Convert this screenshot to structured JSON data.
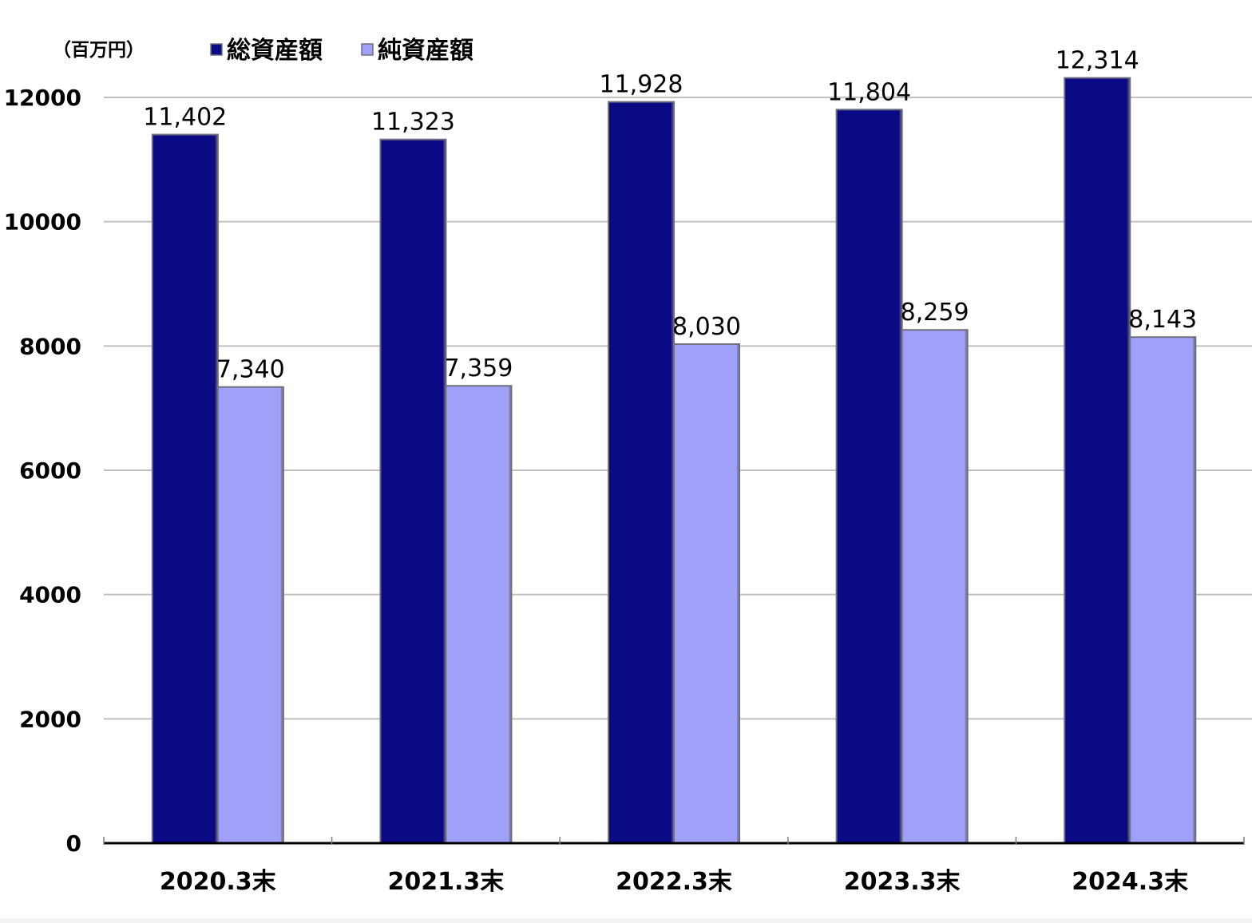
{
  "colors": {
    "total_assets": "#0a0a84",
    "net_assets": "#a0a0f8",
    "gridline": "#c0c0c0",
    "axis": "#000000",
    "bar_edge": "#707080",
    "text": "#000000"
  },
  "chart_data": {
    "type": "bar",
    "unit_label": "（百万円）",
    "categories": [
      "2020.3末",
      "2021.3末",
      "2022.3末",
      "2023.3末",
      "2024.3末"
    ],
    "series": [
      {
        "name": "総資産額",
        "color_key": "total_assets",
        "values": [
          11402,
          11323,
          11928,
          11804,
          12314
        ],
        "labels": [
          "11,402",
          "11,323",
          "11,928",
          "11,804",
          "12,314"
        ]
      },
      {
        "name": "純資産額",
        "color_key": "net_assets",
        "values": [
          7340,
          7359,
          8030,
          8259,
          8143
        ],
        "labels": [
          "7,340",
          "7,359",
          "8,030",
          "8,259",
          "8,143"
        ]
      }
    ],
    "yticks": [
      0,
      2000,
      4000,
      6000,
      8000,
      10000,
      12000
    ],
    "ylim": [
      0,
      12000
    ],
    "grid": true,
    "legend_position": "top"
  }
}
